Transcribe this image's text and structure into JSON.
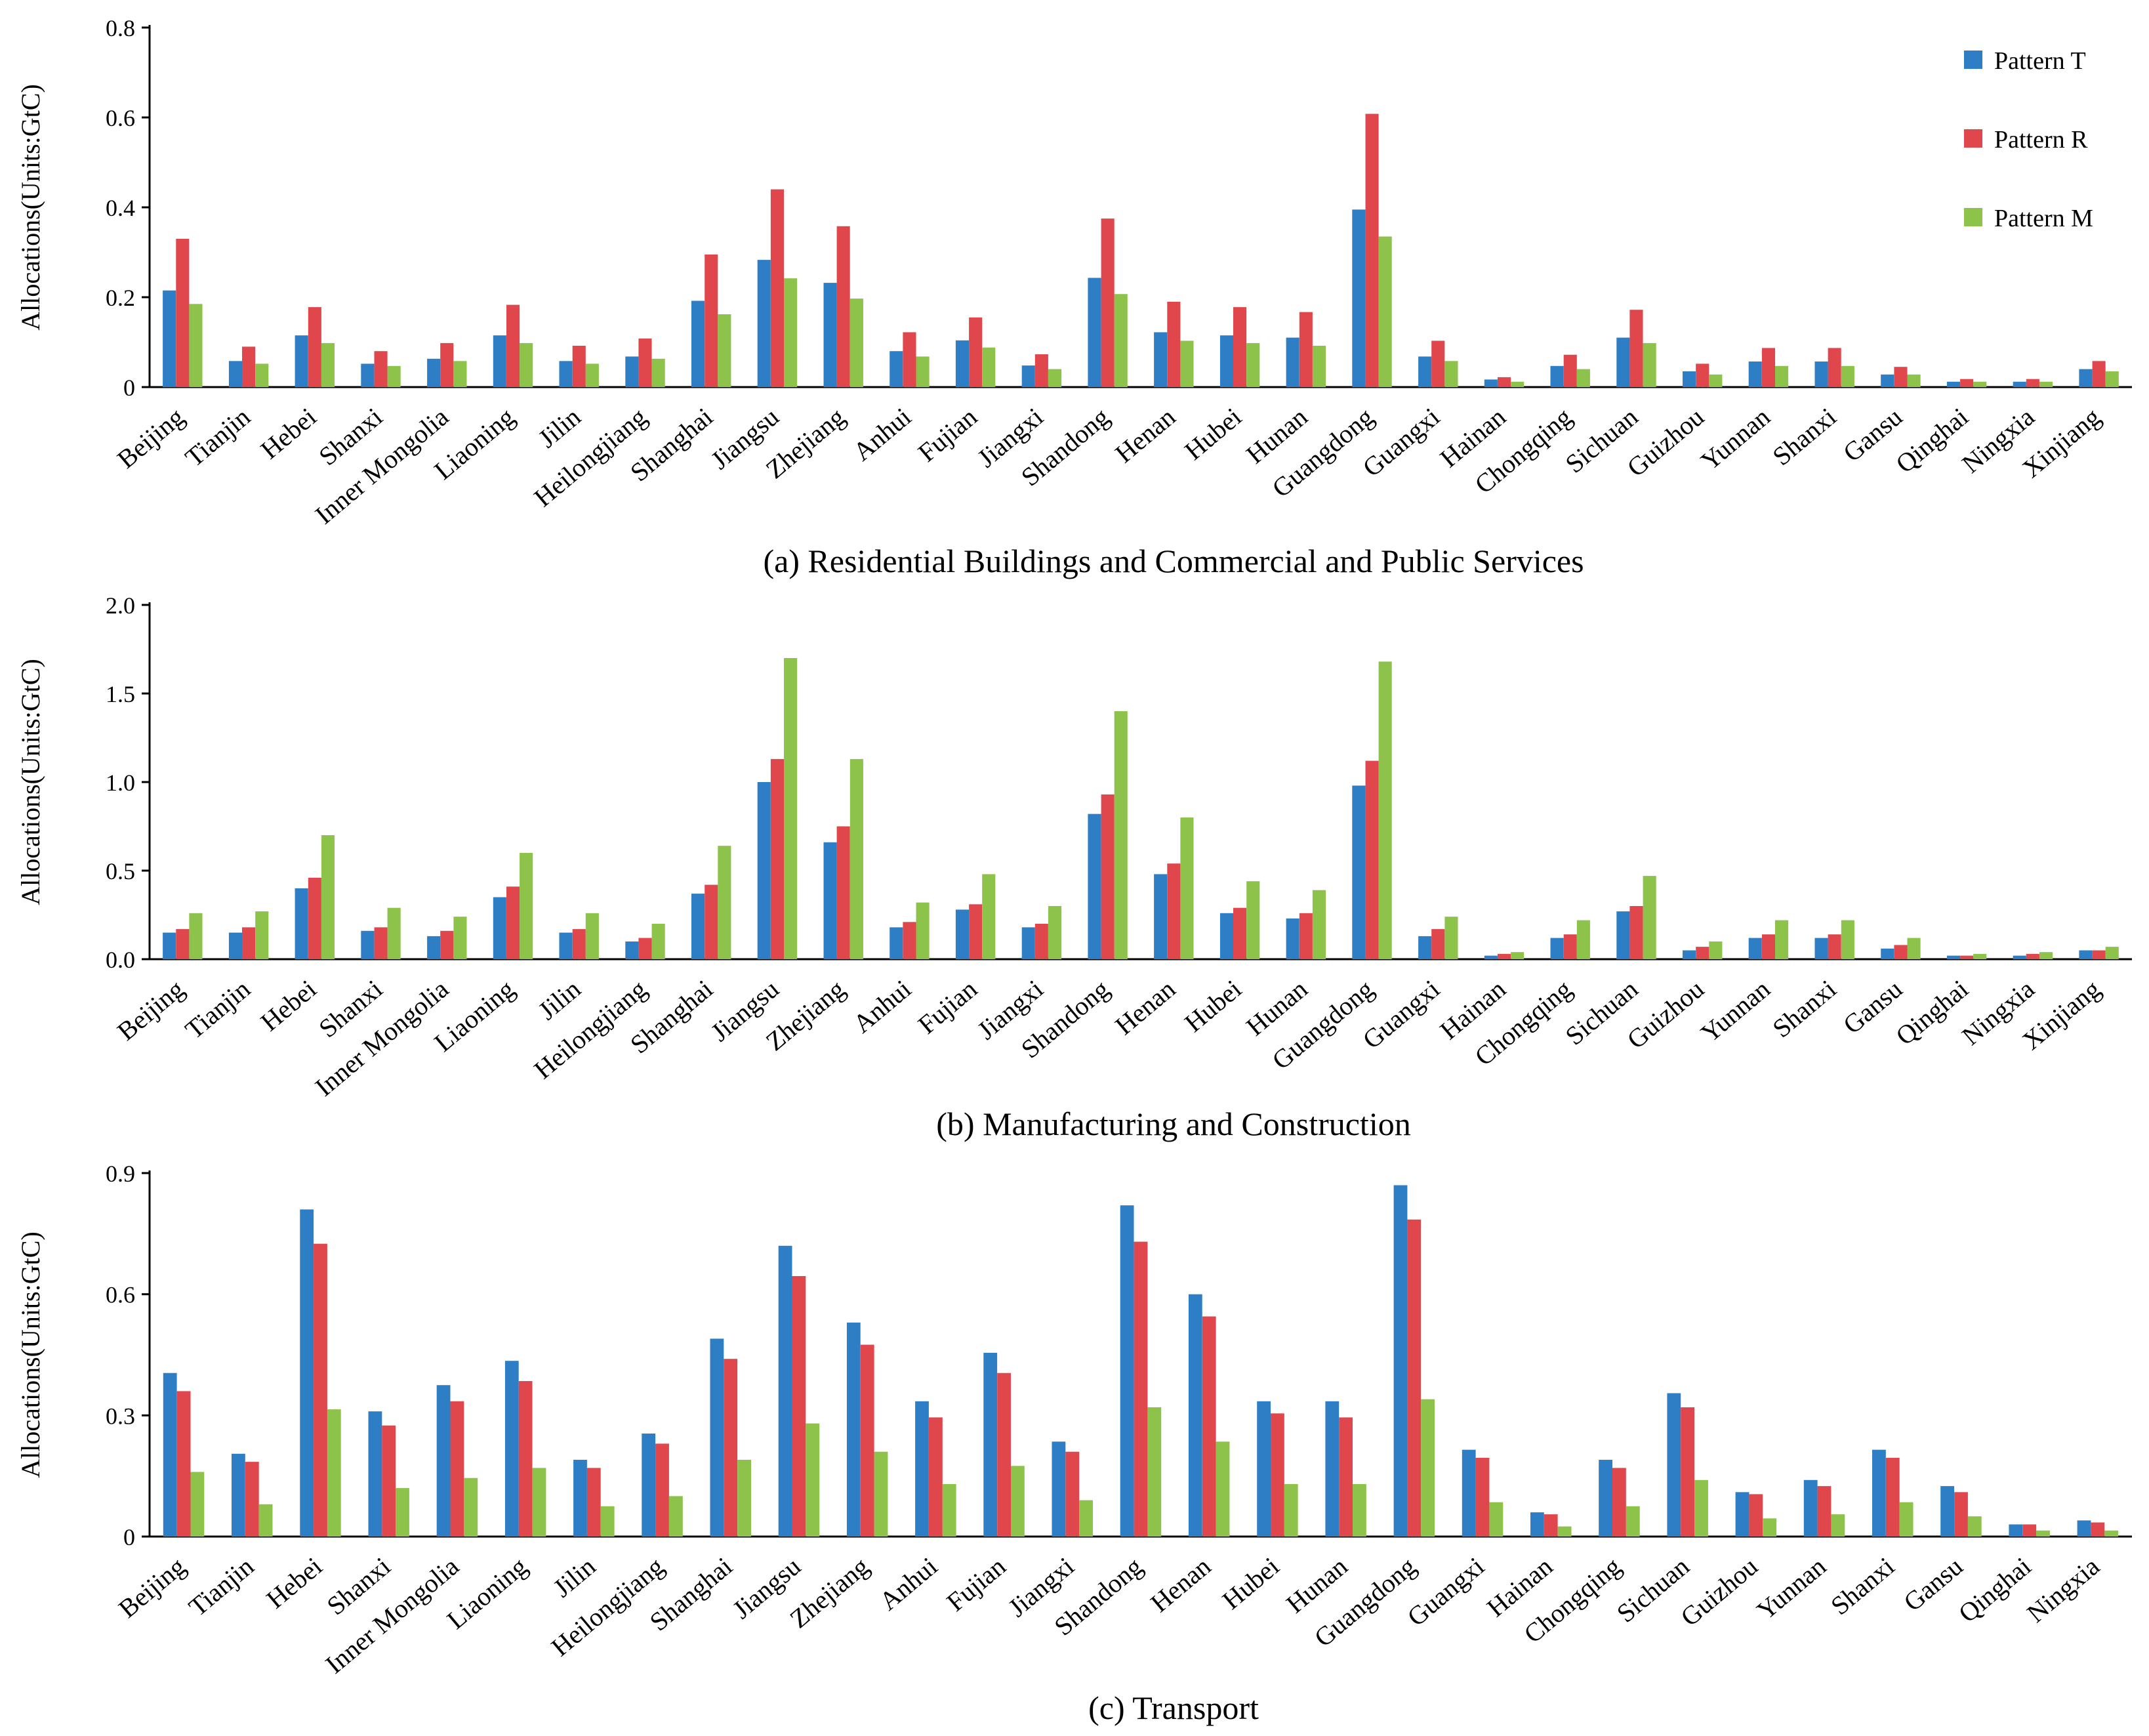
{
  "legend": {
    "position": "top-right",
    "entries": [
      "Pattern T",
      "Pattern R",
      "Pattern M"
    ]
  },
  "colors": {
    "Pattern T": "#2e7ec6",
    "Pattern R": "#e0474c",
    "Pattern M": "#8dc24b"
  },
  "chart_data": [
    {
      "type": "bar",
      "title": "(a) Residential  Buildings   and Commercial  and Public  Services",
      "xlabel": "",
      "ylabel": "Allocations(Units:GtC)",
      "ylim": [
        0,
        0.8
      ],
      "yticks": [
        "0",
        "0.2",
        "0.4",
        "0.6",
        "0.8"
      ],
      "categories": [
        "Beijing",
        "Tianjin",
        "Hebei",
        "Shanxi",
        "Inner Mongolia",
        "Liaoning",
        "Jilin",
        "Heilongjiang",
        "Shanghai",
        "Jiangsu",
        "Zhejiang",
        "Anhui",
        "Fujian",
        "Jiangxi",
        "Shandong",
        "Henan",
        "Hubei",
        "Hunan",
        "Guangdong",
        "Guangxi",
        "Hainan",
        "Chongqing",
        "Sichuan",
        "Guizhou",
        "Yunnan",
        "Shanxi",
        "Gansu",
        "Qinghai",
        "Ningxia",
        "Xinjiang"
      ],
      "series": [
        {
          "name": "Pattern T",
          "values": [
            0.215,
            0.058,
            0.115,
            0.052,
            0.063,
            0.115,
            0.058,
            0.068,
            0.192,
            0.283,
            0.232,
            0.08,
            0.104,
            0.048,
            0.243,
            0.122,
            0.115,
            0.11,
            0.395,
            0.068,
            0.017,
            0.047,
            0.11,
            0.035,
            0.057,
            0.057,
            0.028,
            0.012,
            0.012,
            0.04
          ]
        },
        {
          "name": "Pattern R",
          "values": [
            0.33,
            0.09,
            0.178,
            0.08,
            0.098,
            0.183,
            0.092,
            0.108,
            0.295,
            0.44,
            0.358,
            0.122,
            0.155,
            0.073,
            0.375,
            0.19,
            0.178,
            0.167,
            0.608,
            0.103,
            0.022,
            0.072,
            0.172,
            0.052,
            0.087,
            0.087,
            0.045,
            0.018,
            0.018,
            0.058
          ]
        },
        {
          "name": "Pattern M",
          "values": [
            0.185,
            0.052,
            0.098,
            0.047,
            0.058,
            0.098,
            0.052,
            0.063,
            0.162,
            0.242,
            0.197,
            0.068,
            0.088,
            0.04,
            0.207,
            0.103,
            0.098,
            0.092,
            0.335,
            0.058,
            0.012,
            0.04,
            0.098,
            0.028,
            0.047,
            0.047,
            0.028,
            0.012,
            0.012,
            0.035
          ]
        }
      ]
    },
    {
      "type": "bar",
      "title": "(b) Manufacturing  and Construction",
      "xlabel": "",
      "ylabel": "Allocations(Units:GtC)",
      "ylim": [
        0,
        2.0
      ],
      "yticks": [
        "0.0",
        "0.5",
        "1.0",
        "1.5",
        "2.0"
      ],
      "categories": [
        "Beijing",
        "Tianjin",
        "Hebei",
        "Shanxi",
        "Inner Mongolia",
        "Liaoning",
        "Jilin",
        "Heilongjiang",
        "Shanghai",
        "Jiangsu",
        "Zhejiang",
        "Anhui",
        "Fujian",
        "Jiangxi",
        "Shandong",
        "Henan",
        "Hubei",
        "Hunan",
        "Guangdong",
        "Guangxi",
        "Hainan",
        "Chongqing",
        "Sichuan",
        "Guizhou",
        "Yunnan",
        "Shanxi",
        "Gansu",
        "Qinghai",
        "Ningxia",
        "Xinjiang"
      ],
      "series": [
        {
          "name": "Pattern T",
          "values": [
            0.15,
            0.15,
            0.4,
            0.16,
            0.13,
            0.35,
            0.15,
            0.1,
            0.37,
            1.0,
            0.66,
            0.18,
            0.28,
            0.18,
            0.82,
            0.48,
            0.26,
            0.23,
            0.98,
            0.13,
            0.02,
            0.12,
            0.27,
            0.05,
            0.12,
            0.12,
            0.06,
            0.02,
            0.02,
            0.05
          ]
        },
        {
          "name": "Pattern R",
          "values": [
            0.17,
            0.18,
            0.46,
            0.18,
            0.16,
            0.41,
            0.17,
            0.12,
            0.42,
            1.13,
            0.75,
            0.21,
            0.31,
            0.2,
            0.93,
            0.54,
            0.29,
            0.26,
            1.12,
            0.17,
            0.03,
            0.14,
            0.3,
            0.07,
            0.14,
            0.14,
            0.08,
            0.02,
            0.03,
            0.05
          ]
        },
        {
          "name": "Pattern M",
          "values": [
            0.26,
            0.27,
            0.7,
            0.29,
            0.24,
            0.6,
            0.26,
            0.2,
            0.64,
            1.7,
            1.13,
            0.32,
            0.48,
            0.3,
            1.4,
            0.8,
            0.44,
            0.39,
            1.68,
            0.24,
            0.04,
            0.22,
            0.47,
            0.1,
            0.22,
            0.22,
            0.12,
            0.03,
            0.04,
            0.07
          ]
        }
      ]
    },
    {
      "type": "bar",
      "title": "(c) Transport",
      "xlabel": "",
      "ylabel": "Allocations(Units:GtC)",
      "ylim": [
        0,
        0.9
      ],
      "yticks": [
        "0",
        "0.3",
        "0.6",
        "0.9"
      ],
      "categories": [
        "Beijing",
        "Tianjin",
        "Hebei",
        "Shanxi",
        "Inner Mongolia",
        "Liaoning",
        "Jilin",
        "Heilongjiang",
        "Shanghai",
        "Jiangsu",
        "Zhejiang",
        "Anhui",
        "Fujian",
        "Jiangxi",
        "Shandong",
        "Henan",
        "Hubei",
        "Hunan",
        "Guangdong",
        "Guangxi",
        "Hainan",
        "Chongqing",
        "Sichuan",
        "Guizhou",
        "Yunnan",
        "Shanxi",
        "Gansu",
        "Qinghai",
        "Ningxia"
      ],
      "series": [
        {
          "name": "Pattern T",
          "values": [
            0.405,
            0.205,
            0.81,
            0.31,
            0.375,
            0.435,
            0.19,
            0.255,
            0.49,
            0.72,
            0.53,
            0.335,
            0.455,
            0.235,
            0.82,
            0.6,
            0.335,
            0.335,
            0.87,
            0.215,
            0.06,
            0.19,
            0.355,
            0.11,
            0.14,
            0.215,
            0.125,
            0.03,
            0.04
          ]
        },
        {
          "name": "Pattern R",
          "values": [
            0.36,
            0.185,
            0.725,
            0.275,
            0.335,
            0.385,
            0.17,
            0.23,
            0.44,
            0.645,
            0.475,
            0.295,
            0.405,
            0.21,
            0.73,
            0.545,
            0.305,
            0.295,
            0.785,
            0.195,
            0.055,
            0.17,
            0.32,
            0.105,
            0.125,
            0.195,
            0.11,
            0.03,
            0.035
          ]
        },
        {
          "name": "Pattern M",
          "values": [
            0.16,
            0.08,
            0.315,
            0.12,
            0.145,
            0.17,
            0.075,
            0.1,
            0.19,
            0.28,
            0.21,
            0.13,
            0.175,
            0.09,
            0.32,
            0.235,
            0.13,
            0.13,
            0.34,
            0.085,
            0.025,
            0.075,
            0.14,
            0.045,
            0.055,
            0.085,
            0.05,
            0.015,
            0.015
          ]
        }
      ]
    }
  ]
}
